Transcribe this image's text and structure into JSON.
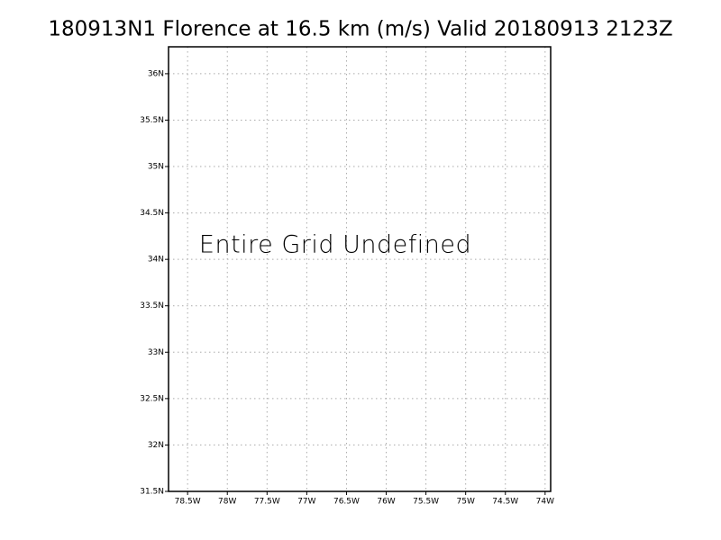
{
  "chart_data": {
    "type": "map",
    "title": "180913N1 Florence at 16.5 km (m/s) Valid 20180913 2123Z",
    "annotation": "Entire Grid Undefined",
    "xlim": [
      -78.74,
      -73.93
    ],
    "ylim": [
      31.5,
      36.29
    ],
    "xticks": [
      {
        "value": -78.5,
        "label": "78.5W"
      },
      {
        "value": -78,
        "label": "78W"
      },
      {
        "value": -77.5,
        "label": "77.5W"
      },
      {
        "value": -77,
        "label": "77W"
      },
      {
        "value": -76.5,
        "label": "76.5W"
      },
      {
        "value": -76,
        "label": "76W"
      },
      {
        "value": -75.5,
        "label": "75.5W"
      },
      {
        "value": -75,
        "label": "75W"
      },
      {
        "value": -74.5,
        "label": "74.5W"
      },
      {
        "value": -74,
        "label": "74W"
      }
    ],
    "yticks": [
      {
        "value": 31.5,
        "label": "31.5N"
      },
      {
        "value": 32,
        "label": "32N"
      },
      {
        "value": 32.5,
        "label": "32.5N"
      },
      {
        "value": 33,
        "label": "33N"
      },
      {
        "value": 33.5,
        "label": "33.5N"
      },
      {
        "value": 34,
        "label": "34N"
      },
      {
        "value": 34.5,
        "label": "34.5N"
      },
      {
        "value": 35,
        "label": "35N"
      },
      {
        "value": 35.5,
        "label": "35.5N"
      },
      {
        "value": 36,
        "label": "36N"
      }
    ],
    "grid": true
  }
}
